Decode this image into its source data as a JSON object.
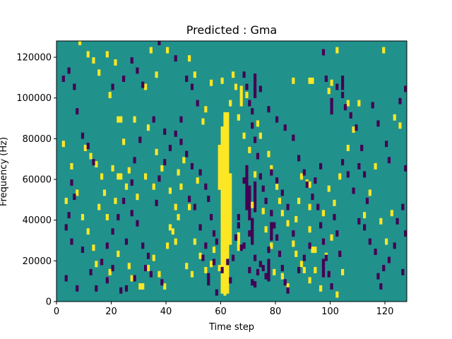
{
  "chart_data": {
    "type": "heatmap",
    "title": "Predicted : Gma",
    "xlabel": "Time step",
    "ylabel": "Frequency (Hz)",
    "xlim": [
      0,
      128
    ],
    "ylim": [
      0,
      128000
    ],
    "x_ticks": [
      0,
      20,
      40,
      60,
      80,
      100,
      120
    ],
    "y_ticks": [
      0,
      20000,
      40000,
      60000,
      80000,
      100000,
      120000
    ],
    "x_tick_labels": [
      "0",
      "20",
      "40",
      "60",
      "80",
      "100",
      "120"
    ],
    "y_tick_labels": [
      "0",
      "20000",
      "40000",
      "60000",
      "80000",
      "100000",
      "120000"
    ],
    "n_time_steps": 128,
    "n_freq_bins": 128,
    "bin_width_hz": 1000,
    "colormap": {
      "-1": "#440154",
      "0": "#21918c",
      "1": "#fde725"
    },
    "background_value": 0,
    "grid": false,
    "legend": "none",
    "cells": [
      [
        8,
        126,
        1
      ],
      [
        11,
        120,
        1
      ],
      [
        13,
        117,
        1
      ],
      [
        15,
        111,
        1
      ],
      [
        18,
        120,
        1
      ],
      [
        21,
        116,
        1
      ],
      [
        19,
        100,
        1
      ],
      [
        22,
        88,
        1
      ],
      [
        23,
        88,
        1
      ],
      [
        28,
        88,
        1
      ],
      [
        24,
        77,
        1
      ],
      [
        20,
        64,
        1
      ],
      [
        22,
        60,
        1
      ],
      [
        23,
        60,
        1
      ],
      [
        26,
        63,
        1
      ],
      [
        16,
        60,
        1
      ],
      [
        10,
        74,
        1
      ],
      [
        12,
        70,
        1
      ],
      [
        14,
        66,
        1
      ],
      [
        15,
        45,
        1
      ],
      [
        17,
        52,
        1
      ],
      [
        18,
        40,
        1
      ],
      [
        21,
        48,
        1
      ],
      [
        25,
        55,
        1
      ],
      [
        29,
        50,
        1
      ],
      [
        32,
        60,
        1
      ],
      [
        35,
        55,
        1
      ],
      [
        9,
        40,
        1
      ],
      [
        11,
        33,
        1
      ],
      [
        13,
        25,
        1
      ],
      [
        14,
        17,
        1
      ],
      [
        19,
        13,
        1
      ],
      [
        22,
        22,
        1
      ],
      [
        26,
        16,
        1
      ],
      [
        27,
        10,
        1
      ],
      [
        30,
        6,
        1
      ],
      [
        31,
        6,
        1
      ],
      [
        33,
        15,
        1
      ],
      [
        35,
        20,
        1
      ],
      [
        37,
        12,
        1
      ],
      [
        39,
        6,
        1
      ],
      [
        40,
        26,
        1
      ],
      [
        42,
        33,
        1
      ],
      [
        44,
        40,
        1
      ],
      [
        45,
        55,
        1
      ],
      [
        46,
        68,
        1
      ],
      [
        48,
        45,
        1
      ],
      [
        50,
        28,
        1
      ],
      [
        52,
        21,
        1
      ],
      [
        54,
        14,
        1
      ],
      [
        56,
        17,
        1
      ],
      [
        57,
        24,
        1
      ],
      [
        59,
        15,
        1
      ],
      [
        53,
        87,
        1
      ],
      [
        56,
        106,
        1
      ],
      [
        60,
        107,
        1
      ],
      [
        64,
        110,
        1
      ],
      [
        65,
        104,
        1
      ],
      [
        69,
        100,
        1
      ],
      [
        73,
        86,
        1
      ],
      [
        74,
        80,
        1
      ],
      [
        77,
        71,
        1
      ],
      [
        78,
        64,
        1
      ],
      [
        80,
        55,
        1
      ],
      [
        81,
        48,
        1
      ],
      [
        82,
        42,
        1
      ],
      [
        84,
        37,
        1
      ],
      [
        86,
        27,
        1
      ],
      [
        87,
        22,
        1
      ],
      [
        89,
        17,
        1
      ],
      [
        90,
        14,
        1
      ],
      [
        92,
        9,
        1
      ],
      [
        94,
        14,
        1
      ],
      [
        96,
        5,
        1
      ],
      [
        98,
        21,
        1
      ],
      [
        100,
        30,
        1
      ],
      [
        102,
        2,
        1
      ],
      [
        104,
        13,
        1
      ],
      [
        106,
        74,
        1
      ],
      [
        108,
        83,
        1
      ],
      [
        110,
        96,
        1
      ],
      [
        112,
        41,
        1
      ],
      [
        114,
        52,
        1
      ],
      [
        116,
        65,
        1
      ],
      [
        118,
        38,
        1
      ],
      [
        120,
        28,
        1
      ],
      [
        122,
        42,
        1
      ],
      [
        123,
        89,
        1
      ],
      [
        125,
        85,
        1
      ],
      [
        86,
        107,
        1
      ],
      [
        92,
        107,
        1
      ],
      [
        93,
        107,
        1
      ],
      [
        99,
        102,
        1
      ],
      [
        100,
        106,
        1
      ],
      [
        102,
        122,
        1
      ],
      [
        119,
        122,
        1
      ],
      [
        106,
        96,
        1
      ],
      [
        91,
        57,
        1
      ],
      [
        92,
        56,
        1
      ],
      [
        92,
        45,
        1
      ],
      [
        92,
        34,
        1
      ],
      [
        93,
        24,
        1
      ],
      [
        94,
        24,
        1
      ],
      [
        87,
        39,
        1
      ],
      [
        88,
        48,
        1
      ],
      [
        89,
        60,
        1
      ],
      [
        40,
        122,
        1
      ],
      [
        34,
        122,
        1
      ],
      [
        36,
        110,
        1
      ],
      [
        32,
        104,
        1
      ],
      [
        48,
        118,
        1
      ],
      [
        50,
        110,
        1
      ],
      [
        54,
        93,
        1
      ],
      [
        44,
        62,
        1
      ],
      [
        41,
        35,
        1
      ],
      [
        43,
        28,
        1
      ],
      [
        47,
        16,
        1
      ],
      [
        49,
        12,
        1
      ],
      [
        5,
        65,
        1
      ],
      [
        7,
        52,
        1
      ],
      [
        3,
        48,
        1
      ],
      [
        2,
        76,
        1
      ],
      [
        33,
        84,
        1
      ],
      [
        36,
        72,
        1
      ],
      [
        38,
        64,
        1
      ],
      [
        41,
        53,
        1
      ],
      [
        43,
        45,
        1
      ],
      [
        51,
        58,
        1
      ],
      [
        63,
        96,
        1
      ],
      [
        66,
        89,
        1
      ],
      [
        68,
        80,
        1
      ],
      [
        70,
        73,
        1
      ],
      [
        72,
        61,
        1
      ],
      [
        71,
        46,
        1
      ],
      [
        75,
        43,
        1
      ],
      [
        76,
        34,
        1
      ],
      [
        78,
        26,
        1
      ],
      [
        79,
        13,
        1
      ],
      [
        82,
        11,
        1
      ],
      [
        84,
        6,
        1
      ],
      [
        97,
        42,
        1
      ],
      [
        99,
        54,
        1
      ],
      [
        103,
        60,
        1
      ],
      [
        101,
        47,
        1
      ],
      [
        2,
        108,
        -1
      ],
      [
        4,
        112,
        -1
      ],
      [
        6,
        104,
        -1
      ],
      [
        7,
        92,
        -1
      ],
      [
        9,
        80,
        -1
      ],
      [
        11,
        75,
        -1
      ],
      [
        13,
        67,
        -1
      ],
      [
        5,
        57,
        -1
      ],
      [
        6,
        50,
        -1
      ],
      [
        4,
        41,
        -1
      ],
      [
        3,
        35,
        -1
      ],
      [
        5,
        28,
        -1
      ],
      [
        3,
        10,
        -1
      ],
      [
        7,
        5,
        -1
      ],
      [
        9,
        24,
        -1
      ],
      [
        12,
        13,
        -1
      ],
      [
        16,
        18,
        -1
      ],
      [
        18,
        9,
        -1
      ],
      [
        20,
        15,
        -1
      ],
      [
        23,
        4,
        -1
      ],
      [
        25,
        28,
        -1
      ],
      [
        27,
        42,
        -1
      ],
      [
        29,
        37,
        -1
      ],
      [
        31,
        26,
        -1
      ],
      [
        33,
        21,
        -1
      ],
      [
        34,
        12,
        -1
      ],
      [
        38,
        8,
        -1
      ],
      [
        36,
        47,
        -1
      ],
      [
        37,
        59,
        -1
      ],
      [
        39,
        67,
        -1
      ],
      [
        41,
        74,
        -1
      ],
      [
        43,
        81,
        -1
      ],
      [
        45,
        88,
        -1
      ],
      [
        47,
        108,
        -1
      ],
      [
        49,
        104,
        -1
      ],
      [
        51,
        96,
        -1
      ],
      [
        52,
        62,
        -1
      ],
      [
        54,
        55,
        -1
      ],
      [
        55,
        49,
        -1
      ],
      [
        56,
        40,
        -1
      ],
      [
        57,
        32,
        -1
      ],
      [
        58,
        28,
        -1
      ],
      [
        53,
        20,
        -1
      ],
      [
        55,
        11,
        -1
      ],
      [
        55,
        8,
        -1
      ],
      [
        20,
        104,
        -1
      ],
      [
        24,
        108,
        -1
      ],
      [
        27,
        117,
        -1
      ],
      [
        29,
        112,
        -1
      ],
      [
        31,
        105,
        -1
      ],
      [
        37,
        126,
        -1
      ],
      [
        43,
        118,
        -1
      ],
      [
        35,
        88,
        -1
      ],
      [
        30,
        78,
        -1
      ],
      [
        28,
        68,
        -1
      ],
      [
        27,
        57,
        -1
      ],
      [
        24,
        48,
        -1
      ],
      [
        22,
        40,
        -1
      ],
      [
        20,
        33,
        -1
      ],
      [
        18,
        26,
        -1
      ],
      [
        14,
        5,
        -1
      ],
      [
        25,
        5,
        -1
      ],
      [
        28,
        10,
        -1
      ],
      [
        32,
        15,
        -1
      ],
      [
        68,
        110,
        -1
      ],
      [
        69,
        104,
        -1
      ],
      [
        70,
        96,
        -1
      ],
      [
        71,
        92,
        -1
      ],
      [
        71,
        85,
        -1
      ],
      [
        72,
        78,
        -1
      ],
      [
        73,
        70,
        -1
      ],
      [
        74,
        60,
        -1
      ],
      [
        75,
        54,
        -1
      ],
      [
        76,
        48,
        -1
      ],
      [
        78,
        42,
        -1
      ],
      [
        79,
        36,
        -1
      ],
      [
        80,
        30,
        -1
      ],
      [
        81,
        22,
        -1
      ],
      [
        82,
        15,
        -1
      ],
      [
        83,
        8,
        -1
      ],
      [
        84,
        4,
        -1
      ],
      [
        69,
        64,
        -1
      ],
      [
        68,
        58,
        -1
      ],
      [
        70,
        51,
        -1
      ],
      [
        69,
        45,
        -1
      ],
      [
        71,
        38,
        -1
      ],
      [
        70,
        32,
        -1
      ],
      [
        68,
        26,
        -1
      ],
      [
        72,
        20,
        -1
      ],
      [
        70,
        14,
        -1
      ],
      [
        71,
        8,
        -1
      ],
      [
        75,
        15,
        -1
      ],
      [
        76,
        11,
        -1
      ],
      [
        77,
        24,
        -1
      ],
      [
        65,
        30,
        -1
      ],
      [
        67,
        25,
        -1
      ],
      [
        66,
        36,
        -1
      ],
      [
        74,
        103,
        -1
      ],
      [
        77,
        93,
        -1
      ],
      [
        80,
        88,
        -1
      ],
      [
        83,
        84,
        -1
      ],
      [
        86,
        79,
        -1
      ],
      [
        88,
        69,
        -1
      ],
      [
        90,
        62,
        -1
      ],
      [
        91,
        56,
        -1
      ],
      [
        93,
        50,
        -1
      ],
      [
        95,
        45,
        -1
      ],
      [
        96,
        36,
        -1
      ],
      [
        97,
        28,
        -1
      ],
      [
        98,
        20,
        -1
      ],
      [
        99,
        12,
        -1
      ],
      [
        100,
        6,
        -1
      ],
      [
        94,
        58,
        -1
      ],
      [
        96,
        65,
        -1
      ],
      [
        97,
        121,
        -1
      ],
      [
        98,
        108,
        -1
      ],
      [
        102,
        104,
        -1
      ],
      [
        104,
        100,
        -1
      ],
      [
        105,
        94,
        -1
      ],
      [
        107,
        90,
        -1
      ],
      [
        109,
        84,
        -1
      ],
      [
        111,
        74,
        -1
      ],
      [
        110,
        65,
        -1
      ],
      [
        112,
        61,
        -1
      ],
      [
        113,
        48,
        -1
      ],
      [
        110,
        38,
        -1
      ],
      [
        112,
        35,
        -1
      ],
      [
        114,
        28,
        -1
      ],
      [
        116,
        23,
        -1
      ],
      [
        117,
        11,
        -1
      ],
      [
        118,
        6,
        -1
      ],
      [
        119,
        15,
        -1
      ],
      [
        121,
        19,
        -1
      ],
      [
        123,
        26,
        -1
      ],
      [
        124,
        38,
        -1
      ],
      [
        126,
        45,
        -1
      ],
      [
        127,
        32,
        -1
      ],
      [
        126,
        13,
        -1
      ],
      [
        127,
        64,
        -1
      ],
      [
        127,
        103,
        -1
      ],
      [
        125,
        97,
        -1
      ],
      [
        115,
        95,
        -1
      ],
      [
        117,
        86,
        -1
      ],
      [
        120,
        76,
        -1
      ],
      [
        121,
        68,
        -1
      ],
      [
        104,
        67,
        -1
      ],
      [
        106,
        61,
        -1
      ],
      [
        108,
        53,
        -1
      ],
      [
        101,
        40,
        -1
      ],
      [
        102,
        32,
        -1
      ],
      [
        103,
        22,
        -1
      ],
      [
        48,
        49,
        -1
      ],
      [
        50,
        45,
        -1
      ],
      [
        52,
        35,
        -1
      ],
      [
        54,
        26,
        -1
      ],
      [
        57,
        18,
        -1
      ],
      [
        58,
        3,
        -1
      ],
      [
        39,
        82,
        -1
      ],
      [
        45,
        77,
        -1
      ],
      [
        47,
        71,
        -1
      ],
      [
        49,
        65,
        -1
      ],
      [
        88,
        14,
        -1
      ],
      [
        90,
        20,
        -1
      ],
      [
        92,
        26,
        -1
      ],
      [
        86,
        32,
        -1
      ],
      [
        84,
        45,
        -1
      ],
      [
        82,
        52,
        -1
      ],
      [
        80,
        58,
        -1
      ],
      [
        78,
        62,
        -1
      ],
      [
        64,
        20,
        -1
      ],
      [
        62,
        18,
        -1
      ],
      [
        60,
        14,
        -1
      ],
      [
        63,
        9,
        -1
      ],
      [
        66,
        40,
        -1
      ],
      [
        72,
        7,
        -1
      ],
      [
        73,
        13,
        -1
      ],
      [
        74,
        17,
        -1
      ]
    ],
    "bands": [
      {
        "x": 60,
        "y0": 4,
        "y1": 85,
        "value": 1
      },
      {
        "x": 61,
        "y0": 3,
        "y1": 92,
        "value": 1
      },
      {
        "x": 62,
        "y0": 4,
        "y1": 92,
        "value": 1
      },
      {
        "x": 59,
        "y0": 55,
        "y1": 76,
        "value": 1
      },
      {
        "x": 63,
        "y0": 28,
        "y1": 62,
        "value": 1
      },
      {
        "x": 67,
        "y0": 96,
        "y1": 105,
        "value": 1
      },
      {
        "x": 66,
        "y0": 25,
        "y1": 33,
        "value": 1
      },
      {
        "x": 69,
        "y0": 48,
        "y1": 63,
        "value": -1
      },
      {
        "x": 70,
        "y0": 40,
        "y1": 56,
        "value": -1
      },
      {
        "x": 71,
        "y0": 28,
        "y1": 40,
        "value": -1
      },
      {
        "x": 72,
        "y0": 100,
        "y1": 111,
        "value": -1
      },
      {
        "x": 72,
        "y0": 44,
        "y1": 58,
        "value": -1
      },
      {
        "x": 77,
        "y0": 10,
        "y1": 20,
        "value": -1
      },
      {
        "x": 78,
        "y0": 30,
        "y1": 38,
        "value": -1
      },
      {
        "x": 97,
        "y0": 12,
        "y1": 20,
        "value": -1
      },
      {
        "x": 100,
        "y0": 92,
        "y1": 99,
        "value": -1
      },
      {
        "x": 104,
        "y0": 104,
        "y1": 110,
        "value": -1
      }
    ]
  }
}
